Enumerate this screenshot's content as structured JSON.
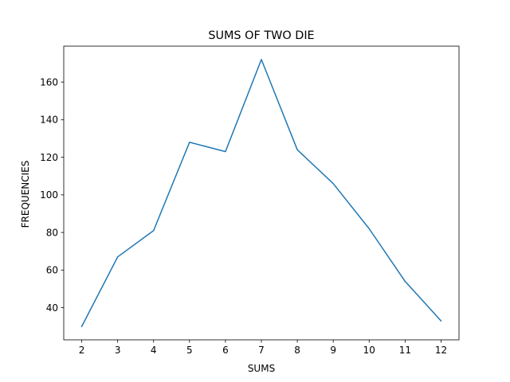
{
  "chart_data": {
    "type": "line",
    "title": "SUMS OF TWO DIE",
    "xlabel": "SUMS",
    "ylabel": "FREQUENCIES",
    "x": [
      2,
      3,
      4,
      5,
      6,
      7,
      8,
      9,
      10,
      11,
      12
    ],
    "series": [
      {
        "values": [
          30,
          67,
          81,
          128,
          123,
          172,
          124,
          106,
          82,
          54,
          33
        ],
        "color": "#1f77b4"
      }
    ],
    "xticks": [
      2,
      3,
      4,
      5,
      6,
      7,
      8,
      9,
      10,
      11,
      12
    ],
    "yticks": [
      40,
      60,
      80,
      100,
      120,
      140,
      160
    ],
    "xlim": [
      1.5,
      12.5
    ],
    "ylim": [
      22.9,
      179.1
    ],
    "grid": false,
    "legend": "none"
  }
}
